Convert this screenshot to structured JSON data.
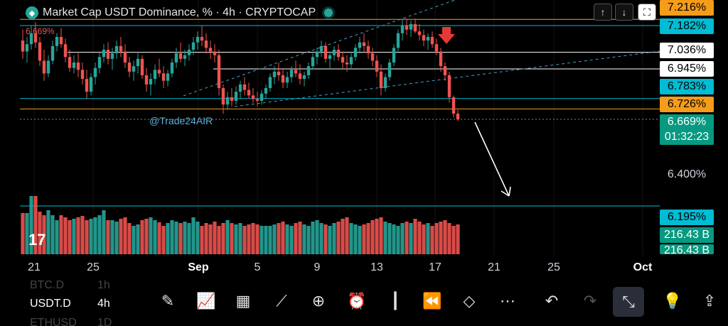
{
  "header": {
    "title": "Market Cap USDT Dominance, % · 4h · CRYPTOCAP",
    "logo_icon": "tradingview-diamond-icon",
    "status_icon": "market-open-dot-icon"
  },
  "controls": {
    "up_icon": "↑",
    "down_icon": "↓",
    "fullscreen_icon": "⛶"
  },
  "watermark": "@Trade24AIR",
  "last_value_left": "6.669%",
  "price_labels": [
    {
      "text": "7.216%",
      "style": "orange"
    },
    {
      "text": "7.182%",
      "style": "cyan"
    },
    {
      "text": "7.036%",
      "style": "white"
    },
    {
      "text": "6.945%",
      "style": "white"
    },
    {
      "text": "6.783%",
      "style": "cyan"
    },
    {
      "text": "6.726%",
      "style": "orange"
    },
    {
      "text": "6.669%",
      "style": "green"
    },
    {
      "text": "01:32:23",
      "style": "green"
    },
    {
      "text": "6.400%",
      "style": "plain"
    },
    {
      "text": "6.195%",
      "style": "cyan"
    },
    {
      "text": "216.43 B",
      "style": "green"
    },
    {
      "text": "216.43 B",
      "style": "green"
    }
  ],
  "chart_data": {
    "type": "candlestick",
    "x_ticks": [
      "21",
      "25",
      "Sep",
      "5",
      "9",
      "13",
      "17",
      "21",
      "25",
      "Oct"
    ],
    "y_ticks": [
      "7.216%",
      "7.182%",
      "7.036%",
      "6.945%",
      "6.783%",
      "6.726%",
      "6.669%",
      "6.400%",
      "6.195%"
    ],
    "levels": [
      {
        "value": 7.216,
        "color": "#f59c1a"
      },
      {
        "value": 7.182,
        "color": "#00bcd4"
      },
      {
        "value": 7.036,
        "color": "#ffffff"
      },
      {
        "value": 6.945,
        "color": "#ffffff"
      },
      {
        "value": 6.783,
        "color": "#00bcd4"
      },
      {
        "value": 6.726,
        "color": "#f59c1a"
      },
      {
        "value": 6.669,
        "color": "#888888"
      },
      {
        "value": 6.195,
        "color": "#00bcd4"
      }
    ],
    "ohlc": [
      [
        7.1,
        7.16,
        7.0,
        7.04
      ],
      [
        7.04,
        7.12,
        6.98,
        7.08
      ],
      [
        7.08,
        7.18,
        7.05,
        7.14
      ],
      [
        7.14,
        7.2,
        7.06,
        7.09
      ],
      [
        7.09,
        7.12,
        6.96,
        6.99
      ],
      [
        6.99,
        7.05,
        6.88,
        6.92
      ],
      [
        6.92,
        7.02,
        6.9,
        6.99
      ],
      [
        6.99,
        7.1,
        6.97,
        7.07
      ],
      [
        7.07,
        7.14,
        7.04,
        7.12
      ],
      [
        7.12,
        7.17,
        7.06,
        7.08
      ],
      [
        7.08,
        7.11,
        6.98,
        7.01
      ],
      [
        7.01,
        7.05,
        6.93,
        6.95
      ],
      [
        6.95,
        7.02,
        6.92,
        6.98
      ],
      [
        6.98,
        7.03,
        6.9,
        6.94
      ],
      [
        6.94,
        6.98,
        6.86,
        6.89
      ],
      [
        6.89,
        6.94,
        6.78,
        6.82
      ],
      [
        6.82,
        6.92,
        6.8,
        6.9
      ],
      [
        6.9,
        6.98,
        6.86,
        6.95
      ],
      [
        6.95,
        7.04,
        6.92,
        7.01
      ],
      [
        7.01,
        7.08,
        6.98,
        7.05
      ],
      [
        7.05,
        7.09,
        6.97,
        7.0
      ],
      [
        7.0,
        7.06,
        6.94,
        7.03
      ],
      [
        7.03,
        7.1,
        7.0,
        7.07
      ],
      [
        7.07,
        7.12,
        7.01,
        7.04
      ],
      [
        7.04,
        7.08,
        6.95,
        6.98
      ],
      [
        6.98,
        7.01,
        6.9,
        6.93
      ],
      [
        6.93,
        6.99,
        6.88,
        6.96
      ],
      [
        6.96,
        7.03,
        6.92,
        7.0
      ],
      [
        7.0,
        7.02,
        6.89,
        6.91
      ],
      [
        6.91,
        6.95,
        6.82,
        6.86
      ],
      [
        6.86,
        6.92,
        6.8,
        6.89
      ],
      [
        6.89,
        6.97,
        6.86,
        6.94
      ],
      [
        6.94,
        7.0,
        6.9,
        6.92
      ],
      [
        6.92,
        6.96,
        6.84,
        6.88
      ],
      [
        6.88,
        6.94,
        6.85,
        6.92
      ],
      [
        6.92,
        7.0,
        6.9,
        6.98
      ],
      [
        6.98,
        7.06,
        6.95,
        7.03
      ],
      [
        7.03,
        7.09,
        6.98,
        7.0
      ],
      [
        7.0,
        7.05,
        6.96,
        7.02
      ],
      [
        7.02,
        7.08,
        6.99,
        7.05
      ],
      [
        7.05,
        7.12,
        7.02,
        7.09
      ],
      [
        7.09,
        7.15,
        7.05,
        7.12
      ],
      [
        7.12,
        7.18,
        7.07,
        7.1
      ],
      [
        7.1,
        7.14,
        7.03,
        7.06
      ],
      [
        7.06,
        7.1,
        7.0,
        7.04
      ],
      [
        7.04,
        7.08,
        6.98,
        7.02
      ],
      [
        7.02,
        7.05,
        6.8,
        6.84
      ],
      [
        6.84,
        6.86,
        6.7,
        6.75
      ],
      [
        6.75,
        6.82,
        6.72,
        6.79
      ],
      [
        6.79,
        6.84,
        6.74,
        6.77
      ],
      [
        6.77,
        6.85,
        6.75,
        6.82
      ],
      [
        6.82,
        6.88,
        6.78,
        6.86
      ],
      [
        6.86,
        6.9,
        6.8,
        6.83
      ],
      [
        6.83,
        6.87,
        6.78,
        6.8
      ],
      [
        6.8,
        6.84,
        6.76,
        6.78
      ],
      [
        6.78,
        6.82,
        6.74,
        6.77
      ],
      [
        6.77,
        6.83,
        6.75,
        6.81
      ],
      [
        6.81,
        6.86,
        6.78,
        6.84
      ],
      [
        6.84,
        6.92,
        6.82,
        6.9
      ],
      [
        6.9,
        6.96,
        6.86,
        6.93
      ],
      [
        6.93,
        6.98,
        6.88,
        6.91
      ],
      [
        6.91,
        6.95,
        6.84,
        6.87
      ],
      [
        6.87,
        6.93,
        6.84,
        6.9
      ],
      [
        6.9,
        6.96,
        6.87,
        6.94
      ],
      [
        6.94,
        6.99,
        6.9,
        6.92
      ],
      [
        6.92,
        6.97,
        6.86,
        6.89
      ],
      [
        6.89,
        6.93,
        6.85,
        6.91
      ],
      [
        6.91,
        6.98,
        6.89,
        6.96
      ],
      [
        6.96,
        7.03,
        6.94,
        7.01
      ],
      [
        7.01,
        7.06,
        6.97,
        7.04
      ],
      [
        7.04,
        7.1,
        7.01,
        7.07
      ],
      [
        7.07,
        7.09,
        6.98,
        7.0
      ],
      [
        7.0,
        7.04,
        6.95,
        7.02
      ],
      [
        7.02,
        7.07,
        6.99,
        7.05
      ],
      [
        7.05,
        7.08,
        6.99,
        7.01
      ],
      [
        7.01,
        7.04,
        6.95,
        6.98
      ],
      [
        6.98,
        7.02,
        6.93,
        6.97
      ],
      [
        6.97,
        7.03,
        6.95,
        7.01
      ],
      [
        7.01,
        7.08,
        6.99,
        7.06
      ],
      [
        7.06,
        7.12,
        7.03,
        7.09
      ],
      [
        7.09,
        7.14,
        7.04,
        7.07
      ],
      [
        7.07,
        7.1,
        7.0,
        7.03
      ],
      [
        7.03,
        7.06,
        6.96,
        6.99
      ],
      [
        6.99,
        7.02,
        6.9,
        6.93
      ],
      [
        6.93,
        6.97,
        6.8,
        6.84
      ],
      [
        6.84,
        6.92,
        6.82,
        6.9
      ],
      [
        6.9,
        7.0,
        6.88,
        6.98
      ],
      [
        6.98,
        7.08,
        6.96,
        7.06
      ],
      [
        7.06,
        7.16,
        7.04,
        7.14
      ],
      [
        7.14,
        7.22,
        7.1,
        7.18
      ],
      [
        7.18,
        7.22,
        7.13,
        7.16
      ],
      [
        7.16,
        7.21,
        7.12,
        7.19
      ],
      [
        7.19,
        7.22,
        7.14,
        7.15
      ],
      [
        7.15,
        7.19,
        7.1,
        7.13
      ],
      [
        7.13,
        7.16,
        7.07,
        7.1
      ],
      [
        7.1,
        7.14,
        7.05,
        7.12
      ],
      [
        7.12,
        7.15,
        7.06,
        7.08
      ],
      [
        7.08,
        7.11,
        7.02,
        7.04
      ],
      [
        7.04,
        7.06,
        6.93,
        6.96
      ],
      [
        6.96,
        6.98,
        6.88,
        6.91
      ],
      [
        6.91,
        6.93,
        6.76,
        6.79
      ],
      [
        6.79,
        6.8,
        6.68,
        6.7
      ],
      [
        6.7,
        6.72,
        6.66,
        6.669
      ]
    ],
    "volume": [
      58,
      58,
      82,
      82,
      60,
      55,
      62,
      55,
      48,
      55,
      52,
      48,
      50,
      52,
      54,
      48,
      50,
      52,
      55,
      62,
      48,
      48,
      46,
      50,
      52,
      44,
      40,
      42,
      48,
      50,
      52,
      48,
      45,
      40,
      44,
      48,
      46,
      44,
      46,
      44,
      52,
      46,
      40,
      44,
      42,
      46,
      40,
      44,
      48,
      44,
      42,
      44,
      40,
      42,
      44,
      42,
      40,
      40,
      40,
      42,
      44,
      46,
      42,
      40,
      44,
      46,
      42,
      40,
      46,
      48,
      44,
      42,
      40,
      44,
      46,
      50,
      52,
      44,
      42,
      40,
      42,
      44,
      48,
      50,
      52,
      46,
      44,
      42,
      40,
      44,
      46,
      44,
      50,
      46,
      42,
      44,
      40,
      44,
      46,
      48,
      44,
      40,
      42
    ]
  },
  "toolbar": {
    "watchlist": [
      {
        "symbol": "BTC.D",
        "interval": "1h"
      },
      {
        "symbol": "USDT.D",
        "interval": "4h"
      },
      {
        "symbol": "ETHUSD",
        "interval": "1D"
      }
    ],
    "icons": [
      "draw-brush-icon",
      "indicators-icon",
      "layout-grid-icon",
      "trend-line-icon",
      "add-circle-icon",
      "alert-clock-icon",
      "candle-style-icon",
      "replay-icon",
      "layers-icon",
      "more-icon",
      "undo-icon",
      "redo-icon",
      "collapse-icon",
      "idea-bulb-icon",
      "share-icon"
    ]
  }
}
